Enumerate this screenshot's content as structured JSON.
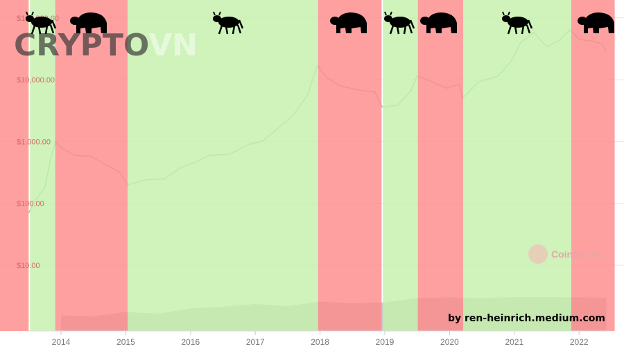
{
  "chart_data": {
    "type": "line",
    "title": "",
    "xlabel": "",
    "ylabel": "",
    "y_scale": "log",
    "ylim": [
      10,
      100000
    ],
    "xlim": [
      2013.05,
      2022.55
    ],
    "y_ticks": [
      "$10.00",
      "$100.00",
      "$1,000.00",
      "$10,000.00",
      "$100,000.00"
    ],
    "y_tick_values": [
      10,
      100,
      1000,
      10000,
      100000
    ],
    "x_ticks": [
      "2014",
      "2015",
      "2016",
      "2017",
      "2018",
      "2019",
      "2020",
      "2021",
      "2022"
    ],
    "grid": true,
    "line_color": "#8ccaa3",
    "series": [
      {
        "x": [
          2013.5,
          2013.6,
          2013.75,
          2013.85,
          2013.92,
          2014.0,
          2014.2,
          2014.45,
          2014.7,
          2014.9,
          2015.03,
          2015.3,
          2015.6,
          2015.85,
          2016.0,
          2016.3,
          2016.6,
          2016.9,
          2017.1,
          2017.4,
          2017.6,
          2017.8,
          2017.96,
          2018.1,
          2018.3,
          2018.6,
          2018.85,
          2018.96,
          2019.2,
          2019.4,
          2019.5,
          2019.7,
          2019.95,
          2020.15,
          2020.2,
          2020.45,
          2020.75,
          2020.95,
          2021.1,
          2021.3,
          2021.5,
          2021.7,
          2021.86,
          2022.0,
          2022.2,
          2022.35,
          2022.42
        ],
        "y": [
          70,
          110,
          180,
          600,
          1000,
          800,
          600,
          580,
          420,
          320,
          200,
          240,
          250,
          380,
          430,
          600,
          620,
          900,
          1000,
          1800,
          2800,
          5500,
          17000,
          11000,
          8000,
          6800,
          6300,
          3600,
          3900,
          6500,
          11500,
          9500,
          7300,
          8500,
          5000,
          9200,
          11500,
          20000,
          40000,
          58000,
          34000,
          44000,
          65000,
          45000,
          42000,
          38000,
          29500
        ]
      }
    ],
    "volume_profile": {
      "x": [
        2014.0,
        2014.5,
        2015.0,
        2015.5,
        2016.0,
        2016.5,
        2017.0,
        2017.5,
        2018.0,
        2018.5,
        2019.0,
        2019.5,
        2020.0,
        2020.5,
        2021.0,
        2021.5,
        2022.0,
        2022.42
      ],
      "relative": [
        0.45,
        0.42,
        0.55,
        0.5,
        0.65,
        0.7,
        0.78,
        0.72,
        0.85,
        0.8,
        0.83,
        0.95,
        0.97,
        0.95,
        0.98,
        0.98,
        0.97,
        0.96
      ]
    },
    "regimes": [
      {
        "type": "bear",
        "from": 2013.05,
        "to": 2013.5
      },
      {
        "type": "bull",
        "from": 2013.52,
        "to": 2013.91
      },
      {
        "type": "bear",
        "from": 2013.91,
        "to": 2015.03
      },
      {
        "type": "bull",
        "from": 2015.03,
        "to": 2017.97
      },
      {
        "type": "bear",
        "from": 2017.97,
        "to": 2018.95
      },
      {
        "type": "bull",
        "from": 2018.97,
        "to": 2019.51
      },
      {
        "type": "bear",
        "from": 2019.51,
        "to": 2020.21
      },
      {
        "type": "bull",
        "from": 2020.21,
        "to": 2021.88
      },
      {
        "type": "bear",
        "from": 2021.88,
        "to": 2022.55
      }
    ],
    "colors": {
      "bear": "#ff8b8b",
      "bull": "#c4f0ac"
    }
  },
  "watermark": {
    "text_dark": "CRYPTO",
    "text_light": "VN"
  },
  "source_logo": "CoinGecko",
  "credit": "by ren-heinrich.medium.com",
  "icons": [
    "bull-icon",
    "bear-icon"
  ]
}
